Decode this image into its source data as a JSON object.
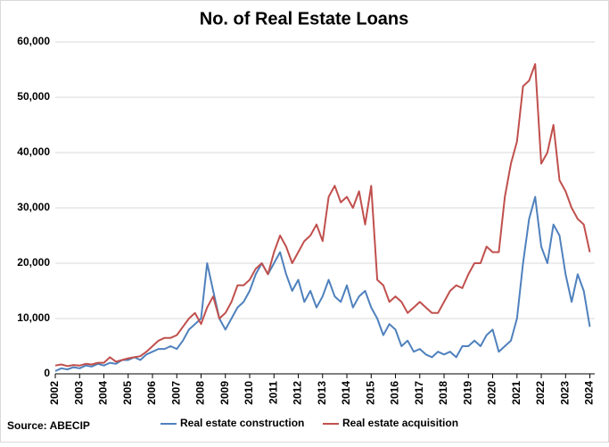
{
  "chart_data": {
    "type": "line",
    "title": "No. of Real Estate Loans",
    "source": "Source: ABECIP",
    "x": [
      2002,
      2002.25,
      2002.5,
      2002.75,
      2003,
      2003.25,
      2003.5,
      2003.75,
      2004,
      2004.25,
      2004.5,
      2004.75,
      2005,
      2005.25,
      2005.5,
      2005.75,
      2006,
      2006.25,
      2006.5,
      2006.75,
      2007,
      2007.25,
      2007.5,
      2007.75,
      2008,
      2008.25,
      2008.5,
      2008.75,
      2009,
      2009.25,
      2009.5,
      2009.75,
      2010,
      2010.25,
      2010.5,
      2010.75,
      2011,
      2011.25,
      2011.5,
      2011.75,
      2012,
      2012.25,
      2012.5,
      2012.75,
      2013,
      2013.25,
      2013.5,
      2013.75,
      2014,
      2014.25,
      2014.5,
      2014.75,
      2015,
      2015.25,
      2015.5,
      2015.75,
      2016,
      2016.25,
      2016.5,
      2016.75,
      2017,
      2017.25,
      2017.5,
      2017.75,
      2018,
      2018.25,
      2018.5,
      2018.75,
      2019,
      2019.25,
      2019.5,
      2019.75,
      2020,
      2020.25,
      2020.5,
      2020.75,
      2021,
      2021.25,
      2021.5,
      2021.75,
      2022,
      2022.25,
      2022.5,
      2022.75,
      2023,
      2023.25,
      2023.5,
      2023.75,
      2024
    ],
    "series": [
      {
        "name": "Real estate construction",
        "color": "#4f81bd",
        "values": [
          500,
          1000,
          800,
          1200,
          1000,
          1500,
          1300,
          1800,
          1500,
          2000,
          1800,
          2500,
          2500,
          3000,
          2500,
          3500,
          4000,
          4500,
          4500,
          5000,
          4500,
          6000,
          8000,
          9000,
          10000,
          20000,
          15000,
          10000,
          8000,
          10000,
          12000,
          13000,
          15000,
          18000,
          20000,
          18000,
          20000,
          22000,
          18000,
          15000,
          17000,
          13000,
          15000,
          12000,
          14000,
          17000,
          14000,
          13000,
          16000,
          12000,
          14000,
          15000,
          12000,
          10000,
          7000,
          9000,
          8000,
          5000,
          6000,
          4000,
          4500,
          3500,
          3000,
          4000,
          3500,
          4000,
          3000,
          5000,
          5000,
          6000,
          5000,
          7000,
          8000,
          4000,
          5000,
          6000,
          10000,
          20000,
          28000,
          32000,
          23000,
          20000,
          27000,
          25000,
          18000,
          13000,
          18000,
          15000,
          8500
        ]
      },
      {
        "name": "Real estate acquisition",
        "color": "#c0504d",
        "values": [
          1500,
          1700,
          1400,
          1600,
          1500,
          1800,
          1700,
          2000,
          2000,
          3000,
          2200,
          2500,
          2800,
          3000,
          3200,
          4000,
          5000,
          6000,
          6500,
          6500,
          7000,
          8500,
          10000,
          11000,
          9000,
          12000,
          14000,
          10000,
          11000,
          13000,
          16000,
          16000,
          17000,
          19000,
          20000,
          18000,
          22000,
          25000,
          23000,
          20000,
          22000,
          24000,
          25000,
          27000,
          24000,
          32000,
          34000,
          31000,
          32000,
          30000,
          33000,
          27000,
          34000,
          17000,
          16000,
          13000,
          14000,
          13000,
          11000,
          12000,
          13000,
          12000,
          11000,
          11000,
          13000,
          15000,
          16000,
          15500,
          18000,
          20000,
          20000,
          23000,
          22000,
          22000,
          32000,
          38000,
          42000,
          52000,
          53000,
          56000,
          38000,
          40000,
          45000,
          35000,
          33000,
          30000,
          28000,
          27000,
          22000
        ]
      }
    ],
    "xlim": [
      2002,
      2024.2
    ],
    "xticks": [
      2002,
      2003,
      2004,
      2005,
      2006,
      2007,
      2008,
      2009,
      2010,
      2011,
      2012,
      2013,
      2014,
      2015,
      2016,
      2017,
      2018,
      2019,
      2020,
      2021,
      2022,
      2023,
      2024
    ],
    "ylim": [
      0,
      60000
    ],
    "yticks": [
      0,
      {
        "value": 10000,
        "label": "10,000"
      },
      {
        "value": 20000,
        "label": "20,000"
      },
      {
        "value": 30000,
        "label": "30,000"
      },
      {
        "value": 40000,
        "label": "40,000"
      },
      {
        "value": 50000,
        "label": "50,000"
      },
      {
        "value": 60000,
        "label": "60,000"
      }
    ],
    "grid": true
  }
}
